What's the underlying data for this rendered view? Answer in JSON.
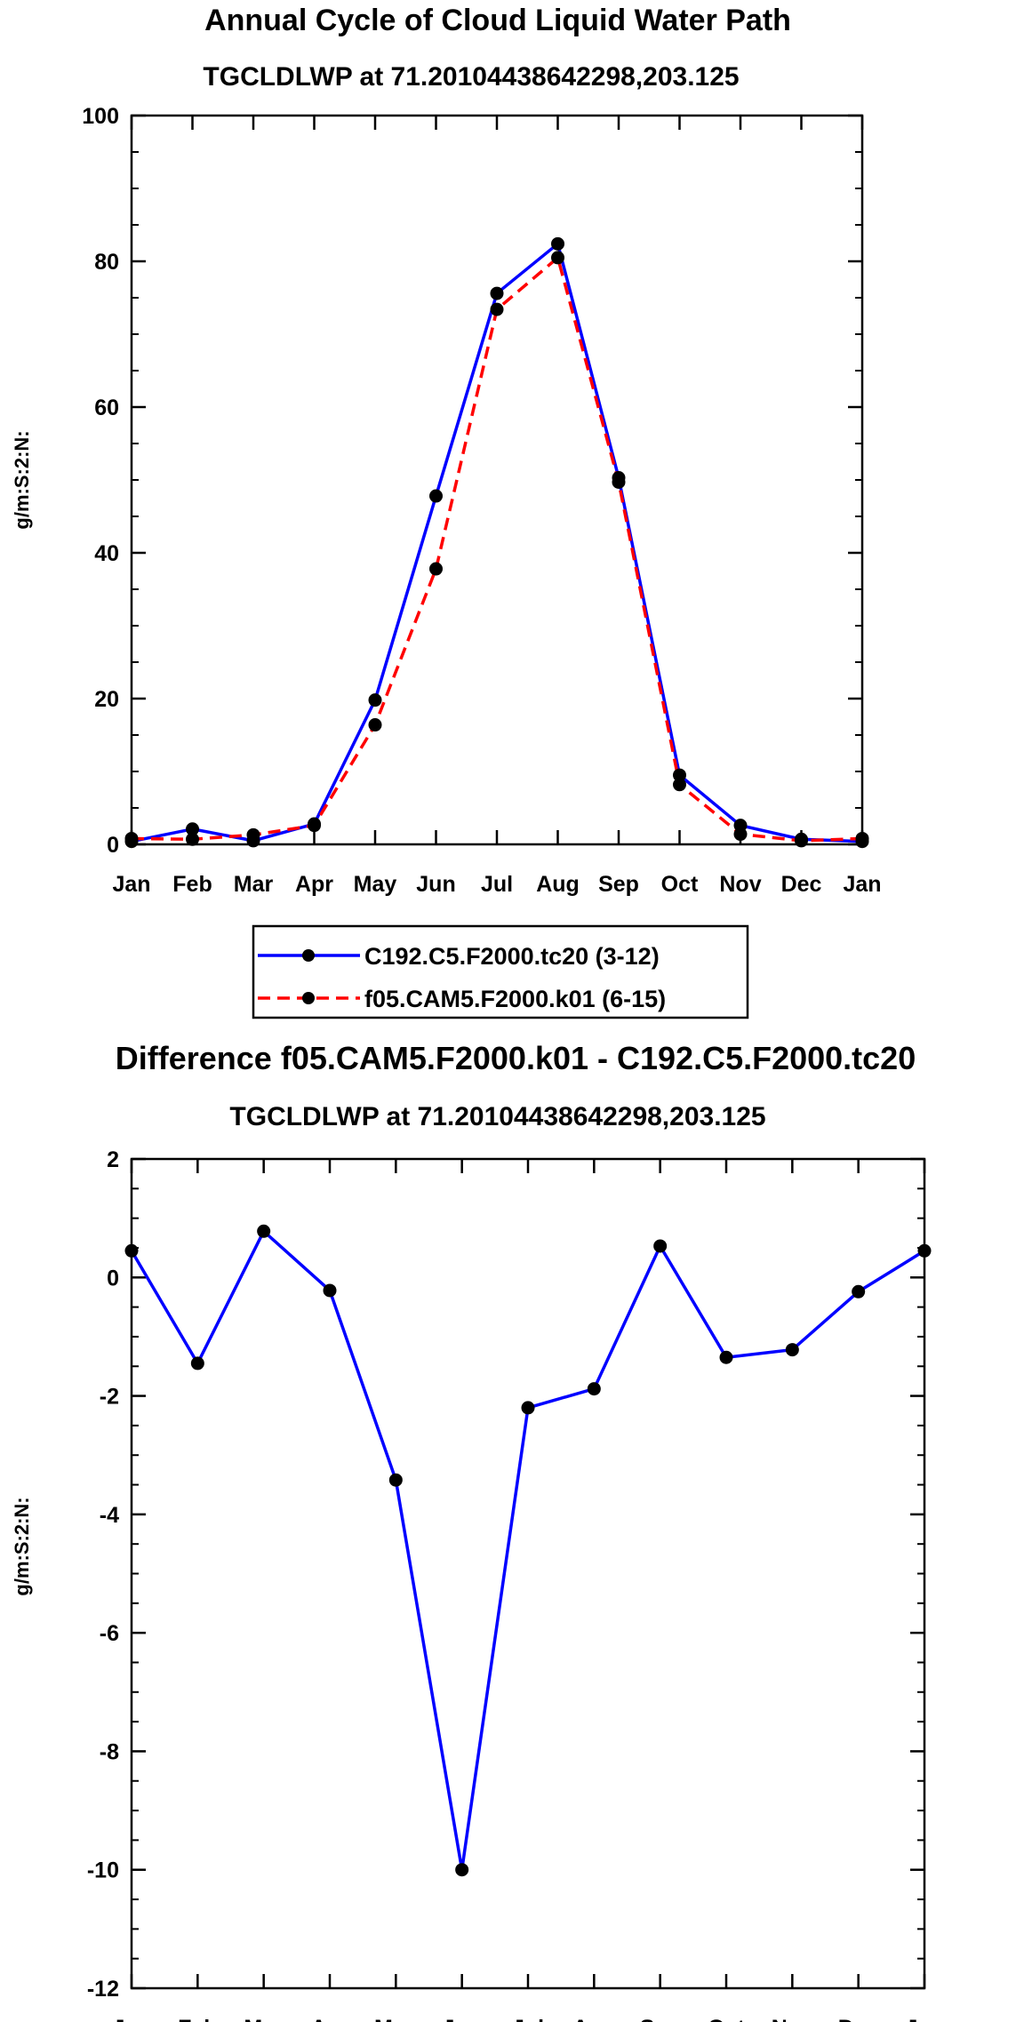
{
  "chart_data": [
    {
      "type": "line",
      "title": "Annual Cycle of Cloud Liquid Water Path",
      "subtitle": "TGCLDLWP at 71.20104438642298,203.125",
      "xlabel": "",
      "ylabel": "g/m:S:2:N:",
      "categories": [
        "Jan",
        "Feb",
        "Mar",
        "Apr",
        "May",
        "Jun",
        "Jul",
        "Aug",
        "Sep",
        "Oct",
        "Nov",
        "Dec",
        "Jan"
      ],
      "ylim": [
        0,
        100
      ],
      "yticks": [
        0,
        20,
        40,
        60,
        80,
        100
      ],
      "series": [
        {
          "name": "C192.C5.F2000.tc20 (3-12)",
          "color": "#0000ff",
          "dash": "solid",
          "values": [
            0.4,
            2.1,
            0.5,
            2.8,
            19.8,
            47.8,
            75.6,
            82.4,
            50.3,
            9.5,
            2.6,
            0.7,
            0.4
          ]
        },
        {
          "name": "f05.CAM5.F2000.k01 (6-15)",
          "color": "#ff0000",
          "dash": "dashed",
          "values": [
            0.8,
            0.7,
            1.3,
            2.6,
            16.4,
            37.8,
            73.4,
            80.5,
            49.7,
            8.2,
            1.4,
            0.5,
            0.8
          ]
        }
      ],
      "legend": "bottom-center"
    },
    {
      "type": "line",
      "title": "Difference f05.CAM5.F2000.k01 - C192.C5.F2000.tc20",
      "subtitle": "TGCLDLWP at 71.20104438642298,203.125",
      "xlabel": "",
      "ylabel": "g/m:S:2:N:",
      "categories": [
        "Jan",
        "Feb",
        "Mar",
        "Apr",
        "May",
        "Jun",
        "Jul",
        "Aug",
        "Sep",
        "Oct",
        "Nov",
        "Dec",
        "Jan"
      ],
      "ylim": [
        -12,
        2
      ],
      "yticks": [
        -12,
        -10,
        -8,
        -6,
        -4,
        -2,
        0,
        2
      ],
      "series": [
        {
          "name": "Difference",
          "color": "#0000ff",
          "dash": "solid",
          "values": [
            0.45,
            -1.45,
            0.78,
            -0.22,
            -3.42,
            -10.0,
            -2.2,
            -1.88,
            0.53,
            -1.35,
            -1.22,
            -0.24,
            0.45
          ]
        }
      ]
    }
  ]
}
